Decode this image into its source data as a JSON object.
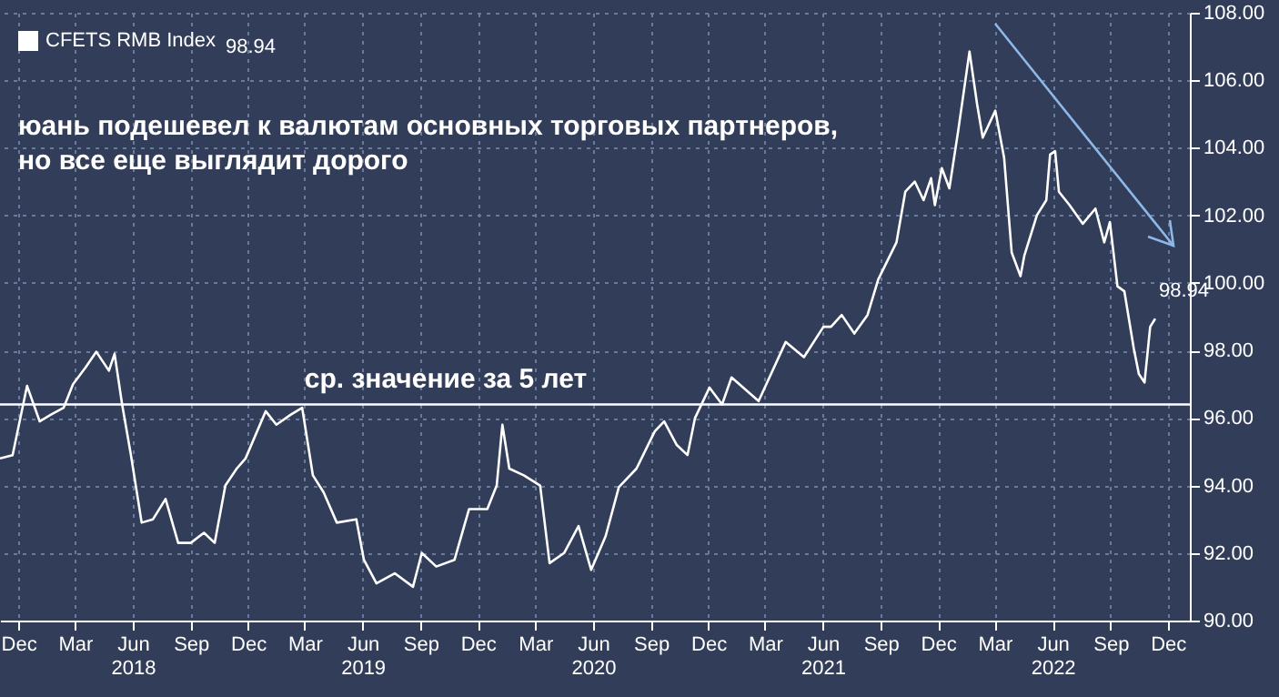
{
  "chart_data": {
    "type": "line",
    "annotations": [
      "юань подешевел к валютам основных торговых партнеров,\nно все еще выглядит дорого"
    ],
    "x": [
      "2017-11-02",
      "2017-11-22",
      "2017-12-15",
      "2018-01-04",
      "2018-01-22",
      "2018-02-11",
      "2018-02-26",
      "2018-03-18",
      "2018-04-04",
      "2018-04-24",
      "2018-05-03",
      "2018-05-15",
      "2018-05-29",
      "2018-06-15",
      "2018-07-03",
      "2018-07-23",
      "2018-08-12",
      "2018-09-01",
      "2018-09-22",
      "2018-10-09",
      "2018-10-26",
      "2018-11-13",
      "2018-11-27",
      "2018-12-29",
      "2019-01-15",
      "2019-02-07",
      "2019-02-25",
      "2019-03-14",
      "2019-03-31",
      "2019-04-21",
      "2019-05-22",
      "2019-06-03",
      "2019-06-23",
      "2019-07-22",
      "2019-08-20",
      "2019-09-03",
      "2019-09-26",
      "2019-10-25",
      "2019-11-17",
      "2019-12-16",
      "2019-12-31",
      "2020-01-09",
      "2020-01-20",
      "2020-02-12",
      "2020-03-09",
      "2020-03-24",
      "2020-04-16",
      "2020-05-09",
      "2020-05-29",
      "2020-06-21",
      "2020-07-12",
      "2020-08-09",
      "2020-09-07",
      "2020-09-22",
      "2020-10-12",
      "2020-10-29",
      "2020-11-10",
      "2020-12-03",
      "2020-12-23",
      "2021-01-07",
      "2021-02-19",
      "2021-04-03",
      "2021-05-02",
      "2021-06-02",
      "2021-06-14",
      "2021-07-01",
      "2021-07-21",
      "2021-08-11",
      "2021-08-28",
      "2021-09-26",
      "2021-10-10",
      "2021-10-25",
      "2021-11-08",
      "2021-11-20",
      "2021-11-26",
      "2021-12-07",
      "2021-12-19",
      "2022-01-02",
      "2022-01-20",
      "2022-02-01",
      "2022-02-10",
      "2022-03-02",
      "2022-03-16",
      "2022-03-28",
      "2022-04-11",
      "2022-04-17",
      "2022-05-07",
      "2022-05-22",
      "2022-05-28",
      "2022-06-05",
      "2022-06-11",
      "2022-06-28",
      "2022-07-19",
      "2022-08-08",
      "2022-08-22",
      "2022-08-31",
      "2022-09-12",
      "2022-09-23",
      "2022-10-08",
      "2022-10-16",
      "2022-10-25",
      "2022-11-03",
      "2022-11-11"
    ],
    "series": [
      {
        "name": "CFETS RMB Index",
        "color": "#ffffff",
        "values": [
          94.8,
          94.9,
          96.95,
          95.9,
          96.1,
          96.3,
          97.0,
          97.5,
          97.96,
          97.4,
          97.9,
          96.4,
          94.9,
          92.9,
          93.0,
          93.6,
          92.3,
          92.3,
          92.6,
          92.3,
          94.0,
          94.5,
          94.8,
          96.2,
          95.8,
          96.1,
          96.3,
          94.3,
          93.8,
          92.9,
          93.0,
          91.8,
          91.1,
          91.4,
          91.0,
          92.0,
          91.6,
          91.8,
          93.3,
          93.3,
          94.0,
          95.8,
          94.5,
          94.3,
          94.0,
          91.7,
          92.0,
          92.8,
          91.5,
          92.5,
          93.95,
          94.5,
          95.6,
          95.9,
          95.2,
          94.9,
          96.0,
          96.9,
          96.4,
          97.2,
          96.5,
          98.25,
          97.8,
          98.7,
          98.7,
          99.05,
          98.5,
          99.05,
          100.1,
          101.2,
          102.7,
          103.0,
          102.45,
          103.1,
          102.3,
          103.4,
          102.8,
          104.5,
          106.85,
          105.3,
          104.3,
          105.1,
          103.7,
          100.9,
          100.2,
          100.8,
          102.0,
          102.45,
          103.8,
          103.9,
          102.7,
          102.3,
          101.75,
          102.2,
          101.2,
          101.8,
          99.9,
          99.75,
          98.05,
          97.3,
          97.05,
          98.7,
          98.94
        ],
        "value_labels": [
          null,
          null,
          null,
          null,
          null,
          null,
          null,
          null,
          null,
          null,
          null,
          null,
          null,
          null,
          null,
          null,
          null,
          null,
          null,
          null,
          null,
          null,
          null,
          null,
          null,
          null,
          null,
          null,
          null,
          null,
          null,
          null,
          null,
          null,
          null,
          null,
          null,
          null,
          null,
          null,
          null,
          null,
          null,
          null,
          null,
          null,
          null,
          null,
          null,
          null,
          null,
          null,
          null,
          null,
          null,
          null,
          null,
          null,
          null,
          null,
          null,
          null,
          null,
          null,
          null,
          null,
          null,
          null,
          null,
          null,
          null,
          null,
          null,
          null,
          null,
          null,
          null,
          null,
          null,
          null,
          null,
          null,
          null,
          null,
          null,
          null,
          null,
          null,
          null,
          null,
          null,
          null,
          null,
          null,
          null,
          null,
          null,
          null,
          null,
          null,
          null,
          null,
          "98.94"
        ]
      }
    ],
    "xlim": [
      "2017-11-02",
      "2023-01-05"
    ],
    "xticks": [
      {
        "value": "2017-12-01",
        "label": "Dec"
      },
      {
        "value": "2018-03-01",
        "label": "Mar"
      },
      {
        "value": "2018-06-01",
        "label": "Jun\n2018"
      },
      {
        "value": "2018-09-01",
        "label": "Sep"
      },
      {
        "value": "2018-12-01",
        "label": "Dec"
      },
      {
        "value": "2019-03-01",
        "label": "Mar"
      },
      {
        "value": "2019-06-01",
        "label": "Jun\n2019"
      },
      {
        "value": "2019-09-01",
        "label": "Sep"
      },
      {
        "value": "2019-12-01",
        "label": "Dec"
      },
      {
        "value": "2020-03-01",
        "label": "Mar"
      },
      {
        "value": "2020-06-01",
        "label": "Jun\n2020"
      },
      {
        "value": "2020-09-01",
        "label": "Sep"
      },
      {
        "value": "2020-12-01",
        "label": "Dec"
      },
      {
        "value": "2021-03-01",
        "label": "Mar"
      },
      {
        "value": "2021-06-01",
        "label": "Jun\n2021"
      },
      {
        "value": "2021-09-01",
        "label": "Sep"
      },
      {
        "value": "2021-12-01",
        "label": "Dec"
      },
      {
        "value": "2022-03-01",
        "label": "Mar"
      },
      {
        "value": "2022-06-01",
        "label": "Jun\n2022"
      },
      {
        "value": "2022-09-01",
        "label": "Sep"
      },
      {
        "value": "2022-12-01",
        "label": "Dec"
      }
    ],
    "ylim": [
      90,
      108
    ],
    "yticks": [
      {
        "value": 90,
        "label": "90.00"
      },
      {
        "value": 92,
        "label": "92.00"
      },
      {
        "value": 94,
        "label": "94.00"
      },
      {
        "value": 96,
        "label": "96.00"
      },
      {
        "value": 98,
        "label": "98.00"
      },
      {
        "value": 100,
        "label": "100.00"
      },
      {
        "value": 102,
        "label": "102.00"
      },
      {
        "value": 104,
        "label": "104.00"
      },
      {
        "value": 106,
        "label": "106.00"
      },
      {
        "value": 108,
        "label": "108.00"
      }
    ],
    "ref_lines": [
      {
        "axis": "y",
        "value": 96.4,
        "label": "ср. значение за 5 лет",
        "color": "#ffffff"
      }
    ],
    "grid": true,
    "legend": "top left"
  }
}
